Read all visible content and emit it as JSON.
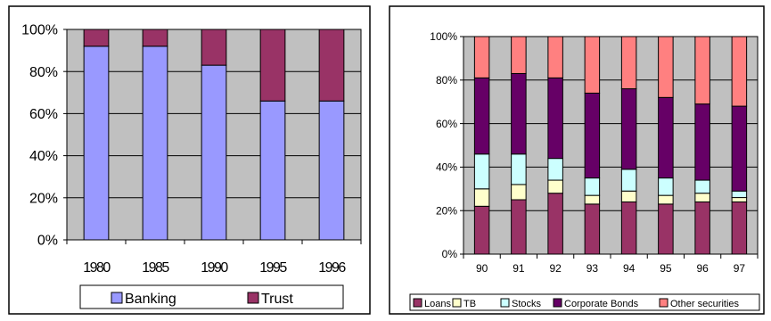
{
  "chart_data": [
    {
      "type": "bar",
      "stacked": true,
      "percent": true,
      "categories": [
        "1980",
        "1985",
        "1990",
        "1995",
        "1996"
      ],
      "series": [
        {
          "name": "Banking",
          "color": "#9999ff",
          "values": [
            92,
            92,
            83,
            66,
            66
          ]
        },
        {
          "name": "Trust",
          "color": "#993366",
          "values": [
            8,
            8,
            17,
            34,
            34
          ]
        }
      ],
      "y_ticks": [
        "0%",
        "20%",
        "40%",
        "60%",
        "80%",
        "100%"
      ],
      "ylim": [
        0,
        100
      ],
      "grid": true,
      "legend": "bottom"
    },
    {
      "type": "bar",
      "stacked": true,
      "percent": true,
      "categories": [
        "90",
        "91",
        "92",
        "93",
        "94",
        "95",
        "96",
        "97"
      ],
      "series": [
        {
          "name": "Loans",
          "color": "#993366",
          "values": [
            22,
            25,
            28,
            23,
            24,
            23,
            24,
            24
          ]
        },
        {
          "name": "TB",
          "color": "#ffffcc",
          "values": [
            8,
            7,
            6,
            4,
            5,
            4,
            4,
            2
          ]
        },
        {
          "name": "Stocks",
          "color": "#ccffff",
          "values": [
            16,
            14,
            10,
            8,
            10,
            8,
            6,
            3
          ]
        },
        {
          "name": "Corporate Bonds",
          "color": "#660066",
          "values": [
            35,
            37,
            37,
            39,
            37,
            37,
            35,
            39
          ]
        },
        {
          "name": "Other securities",
          "color": "#ff8080",
          "values": [
            19,
            17,
            19,
            26,
            24,
            28,
            31,
            32
          ]
        }
      ],
      "y_ticks": [
        "0%",
        "20%",
        "40%",
        "60%",
        "80%",
        "100%"
      ],
      "ylim": [
        0,
        100
      ],
      "grid": true,
      "legend": "bottom"
    }
  ]
}
